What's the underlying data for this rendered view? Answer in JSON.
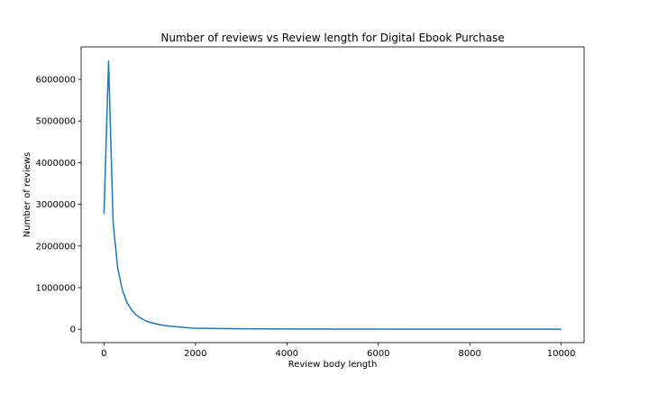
{
  "chart_data": {
    "type": "line",
    "title": "Number of reviews vs Review length for Digital Ebook Purchase",
    "xlabel": "Review body length",
    "ylabel": "Number of reviews",
    "xlim": [
      -500,
      10500
    ],
    "ylim": [
      -320000,
      6780000
    ],
    "xticks": [
      0,
      2000,
      4000,
      6000,
      8000,
      10000
    ],
    "yticks": [
      0,
      1000000,
      2000000,
      3000000,
      4000000,
      5000000,
      6000000
    ],
    "xtick_labels": [
      "0",
      "2000",
      "4000",
      "6000",
      "8000",
      "10000"
    ],
    "ytick_labels": [
      "0",
      "1000000",
      "2000000",
      "3000000",
      "4000000",
      "5000000",
      "6000000"
    ],
    "grid": false,
    "series_color": "#1f77b4",
    "series": [
      {
        "x": [
          0,
          100,
          200,
          300,
          400,
          500,
          600,
          700,
          800,
          900,
          1000,
          1100,
          1200,
          1300,
          1400,
          1500,
          1600,
          1700,
          1800,
          1900,
          2000,
          2500,
          3000,
          3500,
          4000,
          5000,
          6000,
          7000,
          8000,
          9000,
          10000
        ],
        "y": [
          2770000,
          6440000,
          2550000,
          1470000,
          950000,
          650000,
          470000,
          350000,
          270000,
          210000,
          170000,
          140000,
          115000,
          95000,
          80000,
          70000,
          60000,
          50000,
          40000,
          30000,
          25000,
          18000,
          12000,
          9000,
          7000,
          5000,
          3500,
          2500,
          2000,
          1500,
          1000
        ]
      }
    ]
  }
}
